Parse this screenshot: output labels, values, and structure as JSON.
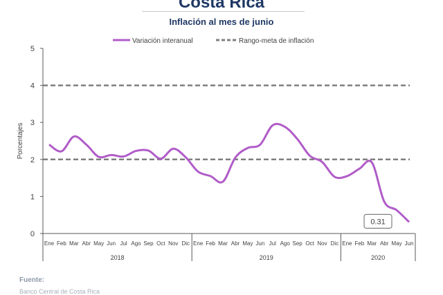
{
  "header": {
    "title": "Costa Rica",
    "subtitle": "Inflación al mes de junio"
  },
  "footer": {
    "source_label": "Fuente:",
    "source_text": "Banco Central de Costa Rica"
  },
  "colors": {
    "series": "#b05cc8",
    "target": "#7f7f7f",
    "axis": "#595959",
    "title": "#1f3864"
  },
  "chart_data": {
    "type": "line",
    "ylabel": "Porcentajes",
    "ylim": [
      0,
      5
    ],
    "yticks": [
      "0",
      "1",
      "2",
      "3",
      "4",
      "5"
    ],
    "legend": {
      "placement": "top",
      "entries": [
        "Variación interanual",
        "Rango-meta de inflación"
      ]
    },
    "month_labels": [
      "Ene",
      "Feb",
      "Mar",
      "Abr",
      "May",
      "Jun",
      "Jul",
      "Ago",
      "Sep",
      "Oct",
      "Nov",
      "Dic",
      "Ene",
      "Feb",
      "Mar",
      "Abr",
      "May",
      "Jun",
      "Jul",
      "Ago",
      "Sep",
      "Oct",
      "Nov",
      "Dic",
      "Ene",
      "Feb",
      "Mar",
      "Abr",
      "May",
      "Jun"
    ],
    "years": [
      "2018",
      "2019",
      "2020"
    ],
    "series": [
      {
        "name": "Variación interanual",
        "values": [
          2.4,
          2.22,
          2.62,
          2.4,
          2.07,
          2.12,
          2.08,
          2.23,
          2.24,
          2.02,
          2.29,
          2.06,
          1.67,
          1.55,
          1.4,
          2.05,
          2.31,
          2.4,
          2.92,
          2.88,
          2.55,
          2.1,
          1.93,
          1.53,
          1.55,
          1.75,
          1.92,
          0.86,
          0.63,
          0.31
        ]
      }
    ],
    "target_band": [
      2,
      4
    ],
    "annotation": {
      "label": "0.31",
      "value": 0.31
    }
  }
}
